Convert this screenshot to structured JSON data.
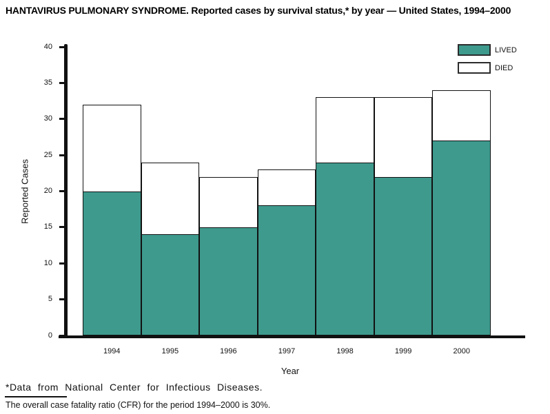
{
  "page": {
    "title": "HANTAVIRUS PULMONARY SYNDROME. Reported cases by survival status,* by year — United States, 1994–2000",
    "footnote_source": "*Data from National Center for Infectious Diseases.",
    "footnote_cfr": "The overall case fatality ratio (CFR) for the period 1994–2000 is 30%."
  },
  "chart_data": {
    "type": "bar",
    "stacked": true,
    "title": "HANTAVIRUS PULMONARY SYNDROME. Reported cases by survival status,* by year — United States, 1994–2000",
    "categories": [
      "1994",
      "1995",
      "1996",
      "1997",
      "1998",
      "1999",
      "2000"
    ],
    "series": [
      {
        "name": "LIVED",
        "color": "#3E9A8D",
        "values": [
          20,
          14,
          15,
          18,
          24,
          22,
          27
        ]
      },
      {
        "name": "DIED",
        "color": "#FFFFFF",
        "values": [
          12,
          10,
          7,
          5,
          9,
          11,
          7
        ]
      }
    ],
    "totals": [
      32,
      24,
      22,
      23,
      33,
      33,
      34
    ],
    "xlabel": "Year",
    "ylabel": "Reported Cases",
    "ylim": [
      0,
      40
    ],
    "ytick_step": 5,
    "yticks": [
      0,
      5,
      10,
      15,
      20,
      25,
      30,
      35,
      40
    ],
    "grid": false,
    "legend_position": "top-right",
    "bar_border_color": "#111111"
  },
  "legend": {
    "items": [
      {
        "label": "LIVED",
        "color": "#3E9A8D"
      },
      {
        "label": "DIED",
        "color": "#FFFFFF"
      }
    ]
  }
}
